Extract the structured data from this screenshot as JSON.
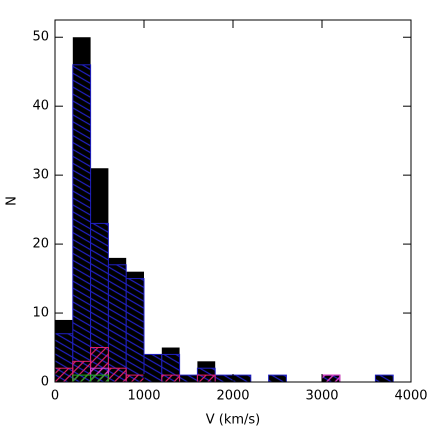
{
  "chart_data": {
    "type": "histogram",
    "xlabel": "V (km/s)",
    "ylabel": "N",
    "bins": [
      0,
      200,
      400,
      600,
      800,
      1000,
      1200,
      1400,
      1600,
      1800,
      2000,
      2200,
      2400,
      2600,
      2800,
      3000,
      3200,
      3400,
      3600,
      3800,
      4000
    ],
    "series": [
      {
        "color": "#000000",
        "fill": "solid",
        "values": [
          9,
          50,
          31,
          18,
          16,
          4,
          5,
          1,
          3,
          1,
          1,
          0,
          1,
          0,
          0,
          1,
          0,
          0,
          1,
          0
        ]
      },
      {
        "color": "#2020c0",
        "fill": "hatch",
        "values": [
          7,
          46,
          23,
          17,
          15,
          4,
          4,
          1,
          2,
          1,
          1,
          0,
          1,
          0,
          0,
          1,
          0,
          0,
          1,
          0
        ]
      },
      {
        "color": "#e0206a",
        "fill": "hatch",
        "values": [
          2,
          3,
          5,
          2,
          1,
          0,
          1,
          0,
          1,
          0,
          0,
          0,
          0,
          0,
          0,
          1,
          0,
          0,
          0,
          0
        ]
      },
      {
        "color": "#d040d0",
        "fill": "hatch",
        "values": [
          0,
          0,
          2,
          0,
          0,
          0,
          0,
          0,
          0,
          0,
          0,
          0,
          0,
          0,
          0,
          1,
          0,
          0,
          0,
          0
        ]
      },
      {
        "color": "#20b020",
        "fill": "hatch",
        "values": [
          0,
          1,
          1,
          0,
          0,
          0,
          0,
          0,
          0,
          0,
          0,
          0,
          0,
          0,
          0,
          0,
          0,
          0,
          0,
          0
        ]
      }
    ],
    "xlim": [
      0,
      4000
    ],
    "ylim": [
      0,
      52.5
    ],
    "xticks": [
      0,
      1000,
      2000,
      3000,
      4000
    ],
    "yticks": [
      0,
      10,
      20,
      30,
      40,
      50
    ]
  }
}
